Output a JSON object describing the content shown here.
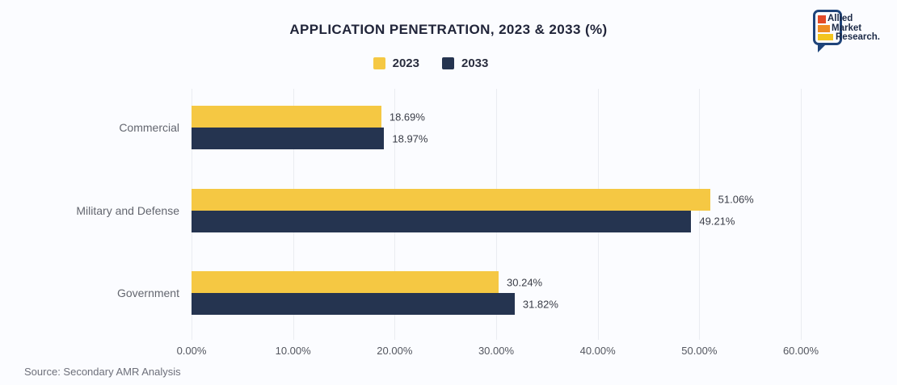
{
  "title": "APPLICATION PENETRATION, 2023 & 2033 (%)",
  "source": "Source: Secondary AMR Analysis",
  "legend": {
    "items": [
      {
        "label": "2023",
        "color": "#F5C843"
      },
      {
        "label": "2033",
        "color": "#253450"
      }
    ]
  },
  "logo": {
    "lines": [
      "Allied",
      "Market",
      "Research."
    ],
    "bar_colors": [
      "#E24A28",
      "#EE8D24",
      "#F3C51D"
    ],
    "outline_color": "#1F447A"
  },
  "colors": {
    "background": "#fbfcff",
    "gridline": "#eaecf1",
    "title_text": "#21253a",
    "category_text": "#63666f",
    "tick_text": "#53565f",
    "value_text": "#3a3d47"
  },
  "chart_data": {
    "type": "bar",
    "orientation": "horizontal",
    "title": "APPLICATION PENETRATION, 2023 & 2033 (%)",
    "categories": [
      "Commercial",
      "Military and Defense",
      "Government"
    ],
    "series": [
      {
        "name": "2023",
        "color": "#F5C843",
        "values": [
          18.69,
          51.06,
          30.24
        ]
      },
      {
        "name": "2033",
        "color": "#253450",
        "values": [
          18.97,
          49.21,
          31.82
        ]
      }
    ],
    "value_label_suffix": "%",
    "x_ticks": [
      "0.00%",
      "10.00%",
      "20.00%",
      "30.00%",
      "40.00%",
      "50.00%",
      "60.00%"
    ],
    "xlim": [
      0,
      60
    ],
    "grid": "vertical-only",
    "legend_position": "top-center"
  }
}
